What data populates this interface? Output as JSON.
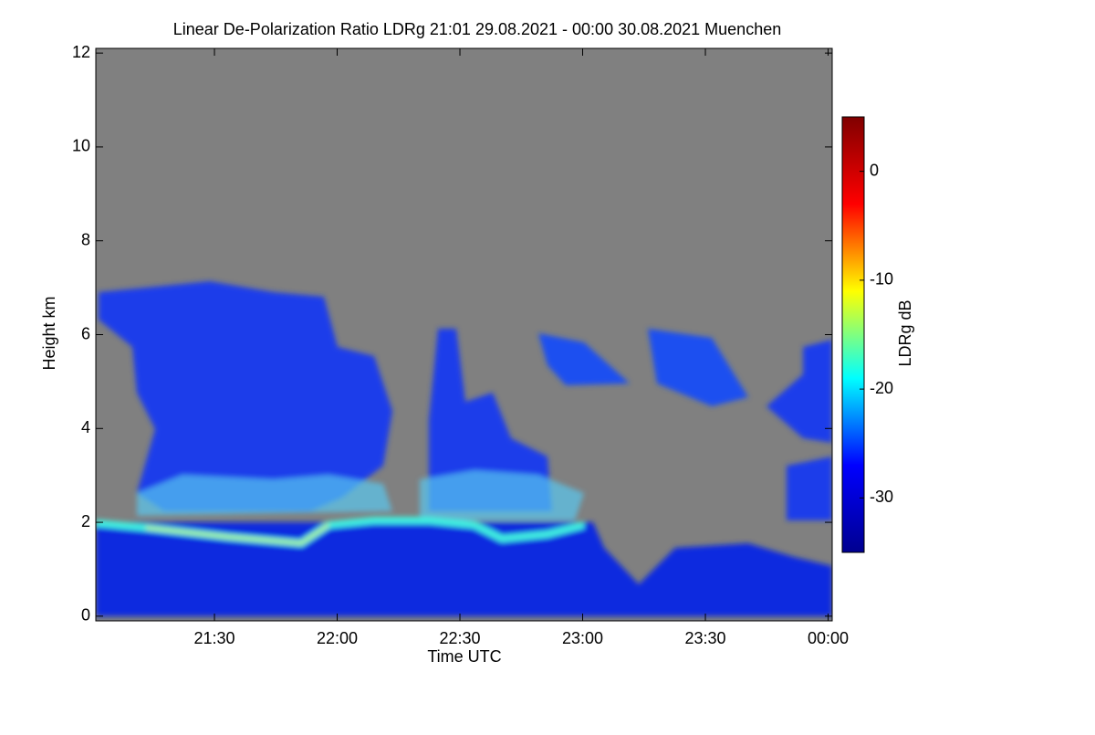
{
  "chart_data": {
    "type": "heatmap",
    "title": "Linear De-Polarization Ratio LDRg   21:01 29.08.2021 - 00:00 30.08.2021 Muenchen",
    "x_label": "Time UTC",
    "y_label": "Height km",
    "colorbar_label": "LDRg dB",
    "xlim": [
      1261,
      1441
    ],
    "xticks": [
      {
        "value": 1290,
        "label": "21:30"
      },
      {
        "value": 1320,
        "label": "22:00"
      },
      {
        "value": 1350,
        "label": "22:30"
      },
      {
        "value": 1380,
        "label": "23:00"
      },
      {
        "value": 1410,
        "label": "23:30"
      },
      {
        "value": 1440,
        "label": "00:00"
      }
    ],
    "ylim": [
      -0.1,
      12.1
    ],
    "yticks": [
      0,
      2,
      4,
      6,
      8,
      10,
      12
    ],
    "clim": [
      -35,
      5
    ],
    "cticks": [
      0,
      -10,
      -20,
      -30
    ],
    "colormap": [
      "#00008f",
      "#0000ff",
      "#00ffff",
      "#ffff00",
      "#ff0000",
      "#800000"
    ],
    "missing_color": "#808080"
  }
}
